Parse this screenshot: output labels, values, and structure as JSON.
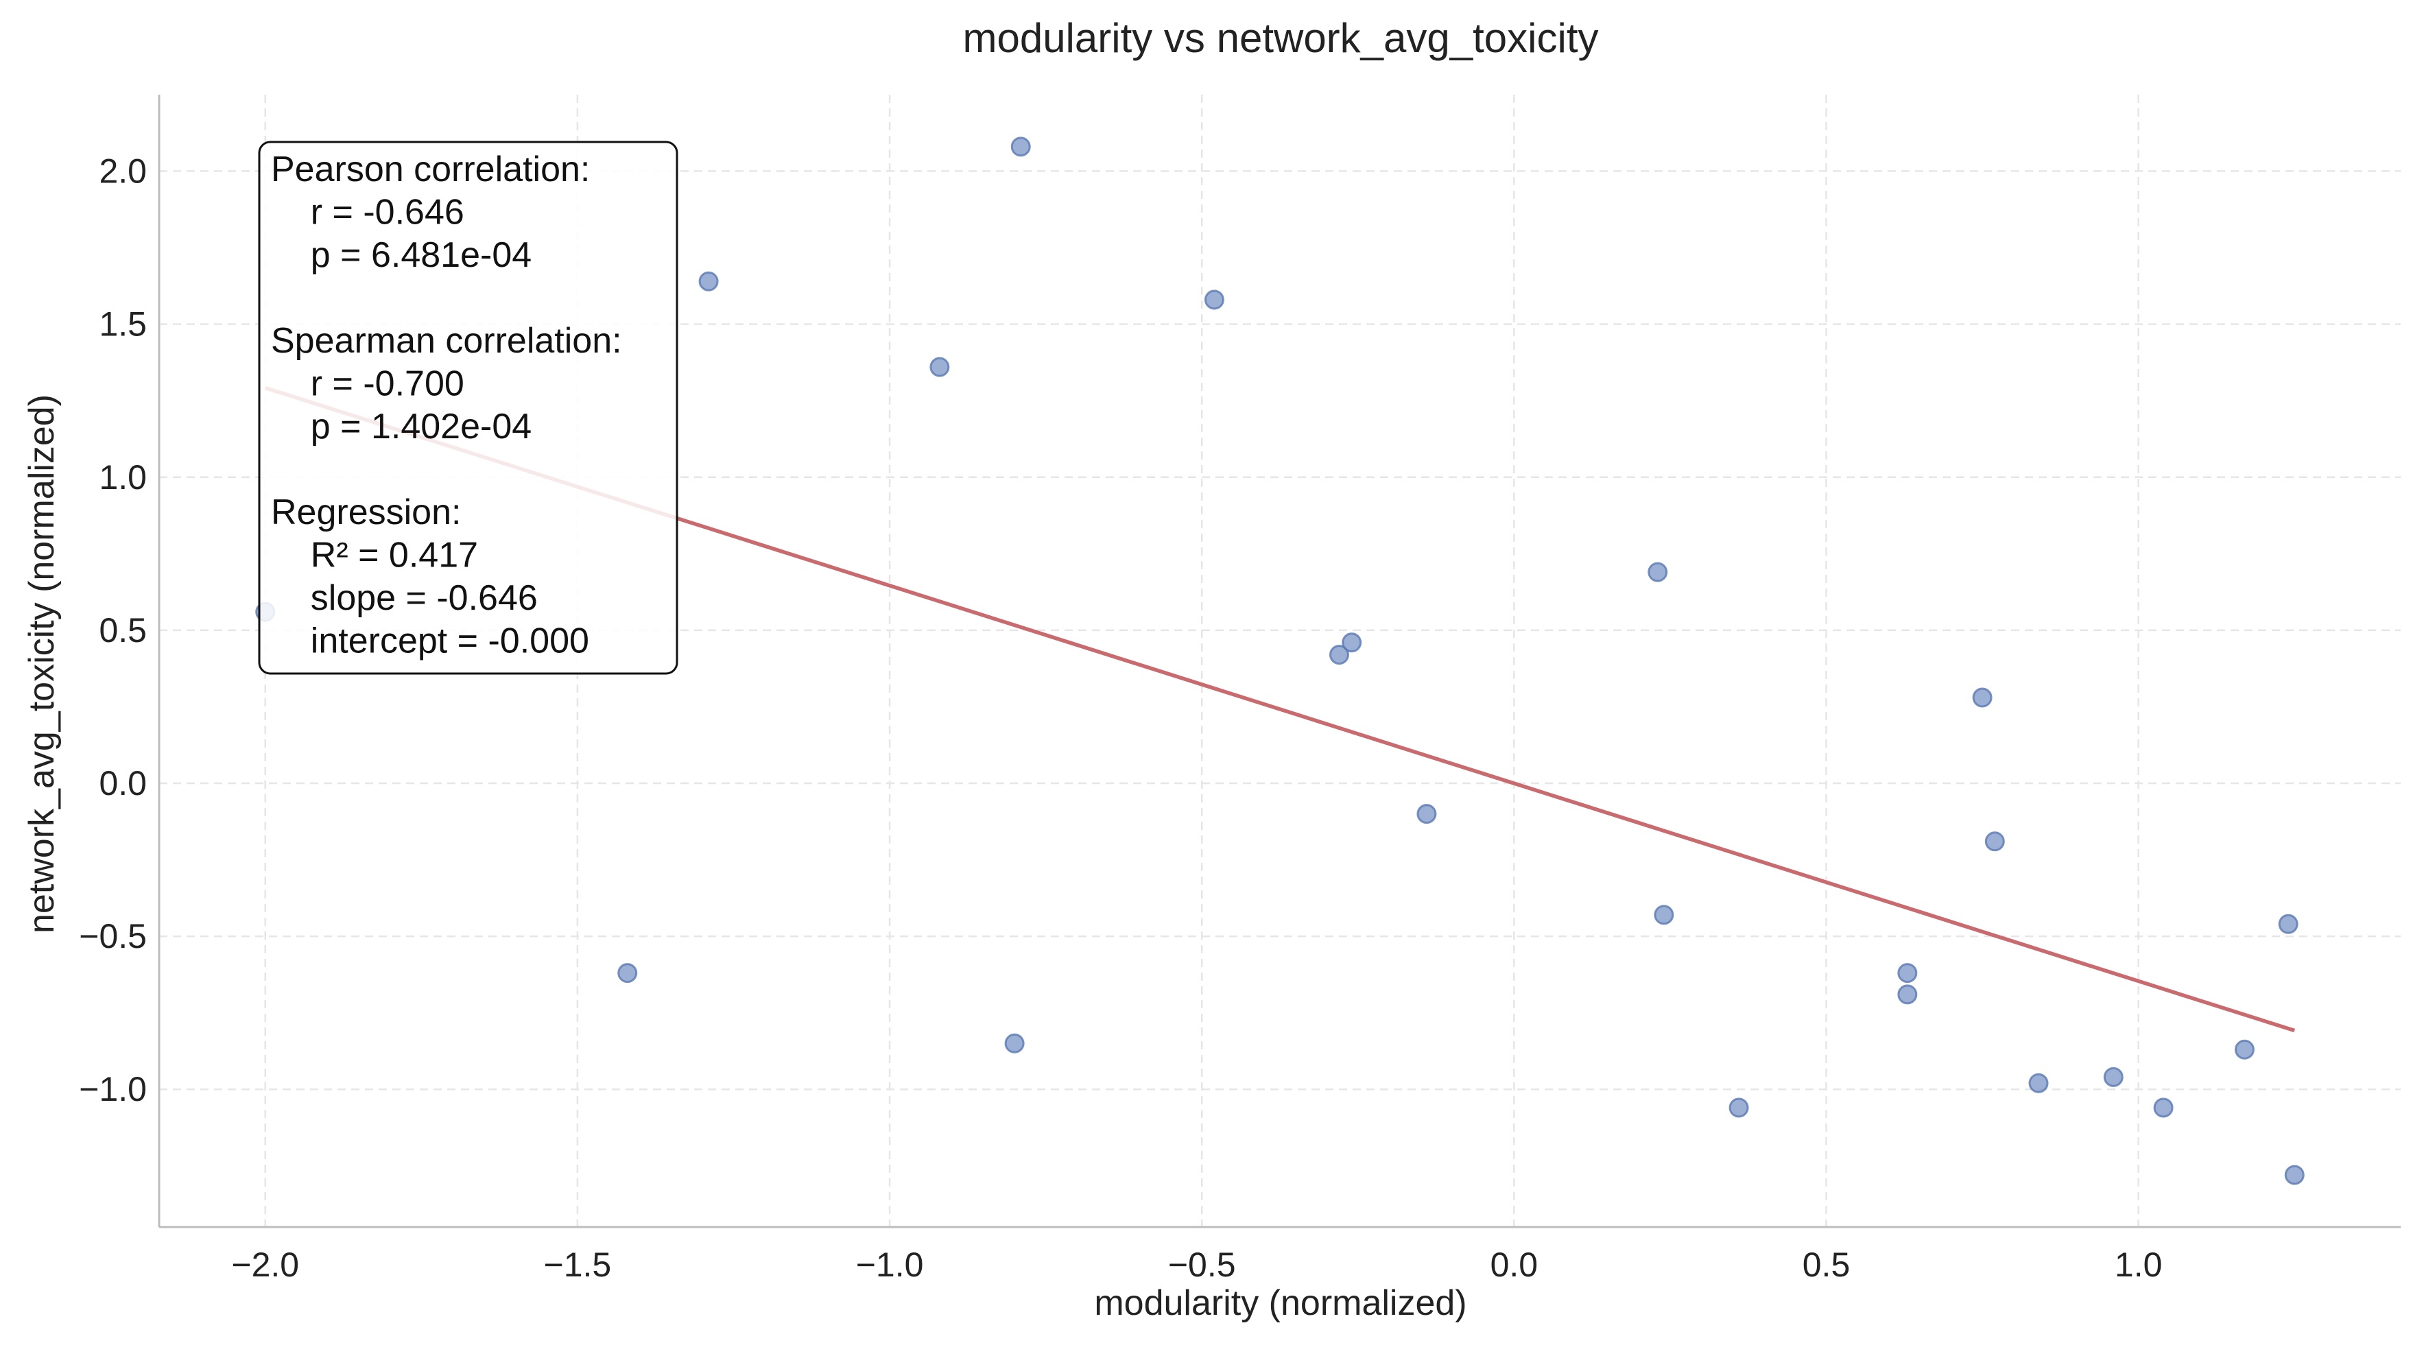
{
  "chart_data": {
    "type": "scatter",
    "title": "modularity vs network_avg_toxicity",
    "xlabel": "modularity (normalized)",
    "ylabel": "network_avg_toxicity (normalized)",
    "xlim": [
      -2.17,
      1.42
    ],
    "ylim": [
      -1.45,
      2.25
    ],
    "xticks": [
      -2.0,
      -1.5,
      -1.0,
      -0.5,
      0.0,
      0.5,
      1.0
    ],
    "xtick_labels": [
      "−2.0",
      "−1.5",
      "−1.0",
      "−0.5",
      "0.0",
      "0.5",
      "1.0"
    ],
    "yticks": [
      -1.0,
      -0.5,
      0.0,
      0.5,
      1.0,
      1.5,
      2.0
    ],
    "ytick_labels": [
      "−1.0",
      "−0.5",
      "0.0",
      "0.5",
      "1.0",
      "1.5",
      "2.0"
    ],
    "grid": true,
    "point_color": "#7b96c8",
    "line_color": "#c96a6e",
    "points": [
      {
        "x": -2.0,
        "y": 0.56
      },
      {
        "x": -1.42,
        "y": -0.62
      },
      {
        "x": -1.29,
        "y": 1.64
      },
      {
        "x": -0.92,
        "y": 1.36
      },
      {
        "x": -0.79,
        "y": 2.08
      },
      {
        "x": -0.8,
        "y": -0.85
      },
      {
        "x": -0.48,
        "y": 1.58
      },
      {
        "x": -0.28,
        "y": 0.42
      },
      {
        "x": -0.26,
        "y": 0.46
      },
      {
        "x": -0.14,
        "y": -0.1
      },
      {
        "x": 0.23,
        "y": 0.69
      },
      {
        "x": 0.24,
        "y": -0.43
      },
      {
        "x": 0.36,
        "y": -1.06
      },
      {
        "x": 0.63,
        "y": -0.62
      },
      {
        "x": 0.63,
        "y": -0.69
      },
      {
        "x": 0.75,
        "y": 0.28
      },
      {
        "x": 0.77,
        "y": -0.19
      },
      {
        "x": 0.84,
        "y": -0.98
      },
      {
        "x": 0.96,
        "y": -0.96
      },
      {
        "x": 1.04,
        "y": -1.06
      },
      {
        "x": 1.17,
        "y": -0.87
      },
      {
        "x": 1.24,
        "y": -0.46
      },
      {
        "x": 1.25,
        "y": -1.28
      }
    ],
    "regression_line": {
      "x": [
        -2.0,
        1.25
      ],
      "y": [
        1.292,
        -0.808
      ]
    },
    "stats_box": [
      "Pearson correlation:",
      "  r = -0.646",
      "  p = 6.481e-04",
      "",
      "Spearman correlation:",
      "  r = -0.700",
      "  p = 1.402e-04",
      "",
      "Regression:",
      "  R² = 0.417",
      "  slope = -0.646",
      "  intercept = -0.000"
    ]
  }
}
